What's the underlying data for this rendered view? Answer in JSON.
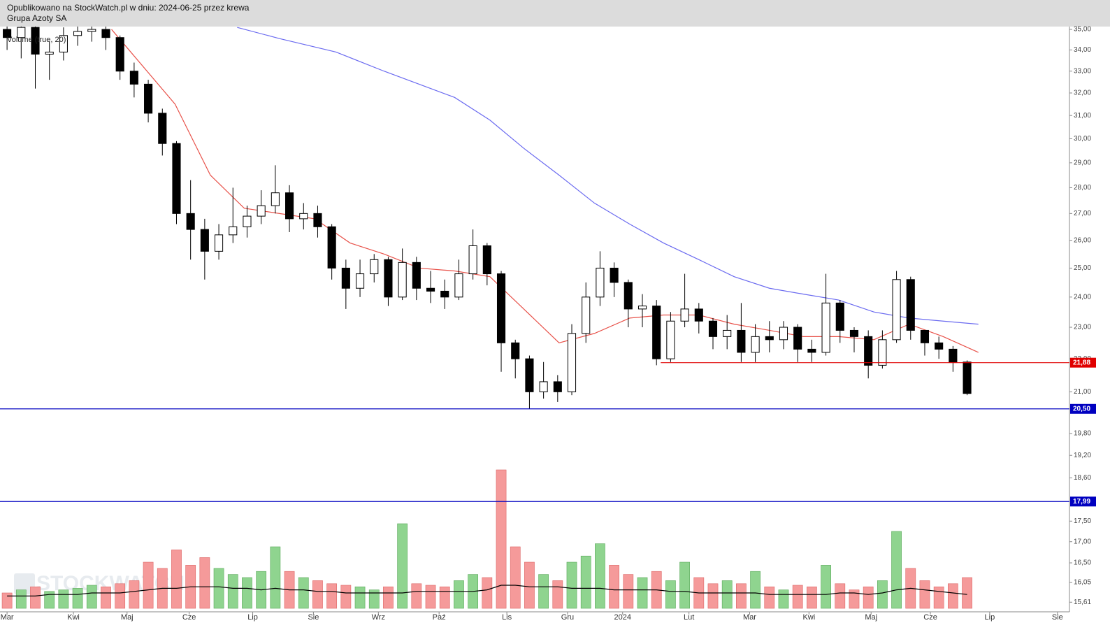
{
  "chart_data": {
    "type": "candlestick",
    "subtitle": "Opublikowano na StockWatch.pl w dniu: 2024-06-25 przez krewa",
    "title": "Grupa Azoty SA",
    "watermark": "STOCKWATCH",
    "log_scale": true,
    "up_color": "#ffffff",
    "down_color": "#000000",
    "x": [
      0,
      1,
      2,
      3,
      4,
      5,
      6,
      7,
      8,
      9,
      10,
      11,
      12,
      13,
      14,
      15,
      16,
      17,
      18,
      19,
      20,
      21,
      22,
      23,
      24,
      25,
      26,
      27,
      28,
      29,
      30,
      31,
      32,
      33,
      34,
      35,
      36,
      37,
      38,
      39,
      40,
      41,
      42,
      43,
      44,
      45,
      46,
      47,
      48,
      49,
      50,
      51,
      52,
      53,
      54,
      55,
      56,
      57,
      58,
      59,
      60,
      61,
      62,
      63,
      64,
      65,
      66,
      67,
      68
    ],
    "open": [
      35.0,
      34.6,
      35.1,
      33.8,
      33.9,
      34.7,
      34.9,
      35.0,
      34.6,
      33.0,
      32.4,
      31.1,
      29.8,
      27.0,
      26.4,
      25.6,
      26.2,
      26.5,
      26.9,
      27.3,
      27.8,
      26.8,
      27.0,
      26.5,
      25.0,
      24.3,
      24.8,
      25.3,
      24.0,
      25.2,
      24.3,
      24.2,
      24.0,
      24.8,
      25.8,
      24.8,
      22.5,
      22.0,
      21.0,
      21.3,
      21.0,
      22.8,
      24.0,
      25.0,
      24.5,
      23.6,
      23.7,
      22.0,
      23.2,
      23.6,
      23.2,
      22.7,
      22.9,
      22.2,
      22.7,
      22.6,
      23.0,
      22.3,
      22.2,
      23.8,
      22.9,
      22.7,
      21.8,
      22.6,
      24.6,
      22.9,
      22.5,
      22.3,
      21.9
    ],
    "high": [
      35.4,
      35.4,
      35.2,
      34.4,
      35.1,
      35.3,
      35.4,
      35.3,
      34.7,
      33.4,
      32.6,
      31.3,
      29.9,
      28.3,
      26.8,
      26.6,
      28.0,
      27.3,
      27.9,
      28.9,
      28.1,
      27.4,
      27.3,
      26.6,
      25.3,
      25.3,
      25.5,
      25.4,
      25.7,
      25.4,
      24.9,
      24.6,
      25.3,
      26.4,
      25.9,
      24.9,
      22.6,
      22.1,
      21.9,
      21.5,
      23.1,
      24.5,
      25.6,
      25.2,
      24.6,
      24.1,
      23.9,
      23.5,
      24.8,
      23.8,
      23.3,
      23.4,
      23.8,
      23.1,
      23.2,
      23.2,
      23.1,
      22.6,
      24.8,
      23.9,
      23.0,
      22.9,
      22.9,
      24.9,
      24.7,
      22.9,
      22.7,
      22.4,
      21.95
    ],
    "low": [
      34.0,
      33.6,
      32.2,
      32.6,
      33.5,
      34.2,
      34.4,
      34.0,
      32.6,
      31.8,
      30.7,
      29.3,
      26.6,
      25.3,
      24.6,
      25.3,
      25.9,
      26.1,
      26.6,
      27.0,
      26.3,
      26.4,
      26.1,
      24.6,
      23.6,
      24.0,
      24.5,
      23.7,
      23.9,
      23.9,
      23.8,
      23.6,
      23.9,
      24.6,
      24.4,
      21.6,
      21.4,
      20.5,
      20.8,
      20.7,
      20.9,
      22.5,
      23.7,
      24.0,
      23.0,
      23.0,
      21.8,
      21.9,
      23.0,
      22.8,
      22.3,
      22.3,
      21.9,
      21.9,
      22.2,
      22.3,
      21.9,
      21.9,
      22.1,
      22.5,
      22.2,
      21.4,
      21.7,
      22.5,
      22.6,
      22.1,
      22.0,
      21.6,
      20.9
    ],
    "close": [
      34.6,
      35.1,
      33.8,
      33.9,
      34.7,
      34.9,
      35.0,
      34.6,
      33.0,
      32.4,
      31.1,
      29.8,
      27.0,
      26.4,
      25.6,
      26.2,
      26.5,
      26.9,
      27.3,
      27.8,
      26.8,
      27.0,
      26.5,
      25.0,
      24.3,
      24.8,
      25.3,
      24.0,
      25.2,
      24.3,
      24.2,
      24.0,
      24.8,
      25.8,
      24.8,
      22.5,
      22.0,
      21.0,
      21.3,
      21.0,
      22.8,
      24.0,
      25.0,
      24.5,
      23.6,
      23.7,
      22.0,
      23.2,
      23.6,
      23.2,
      22.7,
      22.9,
      22.2,
      22.7,
      22.6,
      23.0,
      22.3,
      22.2,
      23.8,
      22.9,
      22.7,
      21.8,
      22.6,
      24.6,
      22.9,
      22.5,
      22.3,
      21.9,
      20.95
    ],
    "xlim": [
      -0.5,
      75.25
    ],
    "xticks": [
      {
        "value": 0,
        "label": "Mar"
      },
      {
        "value": 4.7,
        "label": "Kwi"
      },
      {
        "value": 8.5,
        "label": "Maj"
      },
      {
        "value": 12.9,
        "label": "Cze"
      },
      {
        "value": 17.4,
        "label": "Lip"
      },
      {
        "value": 21.7,
        "label": "Sie"
      },
      {
        "value": 26.3,
        "label": "Wrz"
      },
      {
        "value": 30.6,
        "label": "Paź"
      },
      {
        "value": 35.4,
        "label": "Lis"
      },
      {
        "value": 39.7,
        "label": "Gru"
      },
      {
        "value": 43.6,
        "label": "2024"
      },
      {
        "value": 48.3,
        "label": "Lut"
      },
      {
        "value": 52.6,
        "label": "Mar"
      },
      {
        "value": 56.8,
        "label": "Kwi"
      },
      {
        "value": 61.2,
        "label": "Maj"
      },
      {
        "value": 65.4,
        "label": "Cze"
      },
      {
        "value": 69.6,
        "label": "Lip"
      },
      {
        "value": 74.4,
        "label": "Sie"
      }
    ],
    "ylim": [
      15.4,
      35.14
    ],
    "yticks": [
      {
        "value": 35,
        "label": "35,00"
      },
      {
        "value": 34,
        "label": "34,00"
      },
      {
        "value": 33,
        "label": "33,00"
      },
      {
        "value": 32,
        "label": "32,00"
      },
      {
        "value": 31,
        "label": "31,00"
      },
      {
        "value": 30,
        "label": "30,00"
      },
      {
        "value": 29,
        "label": "29,00"
      },
      {
        "value": 28,
        "label": "28,00"
      },
      {
        "value": 27,
        "label": "27,00"
      },
      {
        "value": 26,
        "label": "26,00"
      },
      {
        "value": 25,
        "label": "25,00"
      },
      {
        "value": 24,
        "label": "24,00"
      },
      {
        "value": 23,
        "label": "23,00"
      },
      {
        "value": 22,
        "label": "22,00"
      },
      {
        "value": 21,
        "label": "21,00"
      },
      {
        "value": 19.8,
        "label": "19,80"
      },
      {
        "value": 19.2,
        "label": "19,20"
      },
      {
        "value": 18.6,
        "label": "18,60"
      },
      {
        "value": 17.5,
        "label": "17,50"
      },
      {
        "value": 17,
        "label": "17,00"
      },
      {
        "value": 16.5,
        "label": "16,50"
      },
      {
        "value": 16.05,
        "label": "16,05"
      },
      {
        "value": 15.61,
        "label": "15,61"
      }
    ],
    "moving_averages": [
      {
        "color": "#e8524a",
        "x": [
          7.4,
          11.9,
          14.4,
          16.8,
          19.3,
          21.8,
          24.3,
          26.7,
          29.2,
          31.7,
          34.2,
          36.6,
          39.1,
          41.6,
          44.1,
          46.5,
          49,
          51.5,
          54,
          56.4,
          58.9,
          61.4,
          63.9,
          66.3,
          68.8
        ],
        "values": [
          35.0,
          31.5,
          28.5,
          27.2,
          27.0,
          26.8,
          25.9,
          25.5,
          25.0,
          24.9,
          24.7,
          23.6,
          22.5,
          22.8,
          23.3,
          23.4,
          23.4,
          23.1,
          22.9,
          22.7,
          22.7,
          22.6,
          23.1,
          22.7,
          22.2
        ]
      },
      {
        "color": "#6b6bf0",
        "x": [
          16.3,
          19.3,
          23.3,
          26.7,
          31.7,
          34.2,
          36.6,
          39.1,
          41.6,
          44.1,
          46.5,
          49,
          51.5,
          54,
          56.4,
          58.9,
          61.4,
          63.9,
          66.3,
          68.8
        ],
        "values": [
          35.1,
          34.55,
          33.9,
          33.0,
          31.8,
          30.8,
          29.6,
          28.5,
          27.4,
          26.6,
          25.9,
          25.3,
          24.7,
          24.3,
          24.1,
          23.9,
          23.5,
          23.3,
          23.2,
          23.1
        ]
      }
    ],
    "hlines": [
      {
        "value": 21.88,
        "label": "21,88",
        "color": "#e00000",
        "x0": 46.3
      },
      {
        "value": 20.5,
        "label": "20,50",
        "color": "#0000c0",
        "x0": -0.5
      },
      {
        "value": 17.99,
        "label": "17,99",
        "color": "#0000c0",
        "x0": -0.5
      }
    ],
    "volume": {
      "label": "Volume (true, 20)",
      "ylim": [
        0,
        100
      ],
      "up_color": "#8fd48f",
      "down_color": "#f59a9a",
      "ma_color": "#000000",
      "values": [
        10,
        12,
        14,
        11,
        12,
        13,
        15,
        14,
        16,
        18,
        30,
        26,
        38,
        28,
        33,
        26,
        22,
        20,
        24,
        40,
        24,
        20,
        18,
        16,
        15,
        14,
        12,
        14,
        55,
        16,
        15,
        14,
        18,
        22,
        20,
        90,
        40,
        30,
        22,
        18,
        30,
        34,
        42,
        28,
        22,
        20,
        24,
        18,
        30,
        20,
        16,
        18,
        16,
        24,
        14,
        12,
        15,
        14,
        28,
        16,
        12,
        14,
        18,
        50,
        26,
        18,
        14,
        16,
        20
      ],
      "ma": [
        8,
        8,
        8,
        9,
        9,
        9,
        10,
        10,
        10,
        11,
        12,
        13,
        13,
        14,
        14,
        14,
        13,
        13,
        12,
        13,
        12,
        12,
        11,
        11,
        10,
        10,
        10,
        10,
        10,
        11,
        11,
        11,
        11,
        11,
        12,
        15,
        15,
        14,
        14,
        14,
        13,
        13,
        13,
        12,
        12,
        12,
        12,
        11,
        11,
        10,
        10,
        10,
        10,
        10,
        9,
        9,
        9,
        9,
        9,
        10,
        10,
        9,
        10,
        12,
        13,
        12,
        11,
        10,
        9
      ]
    }
  }
}
